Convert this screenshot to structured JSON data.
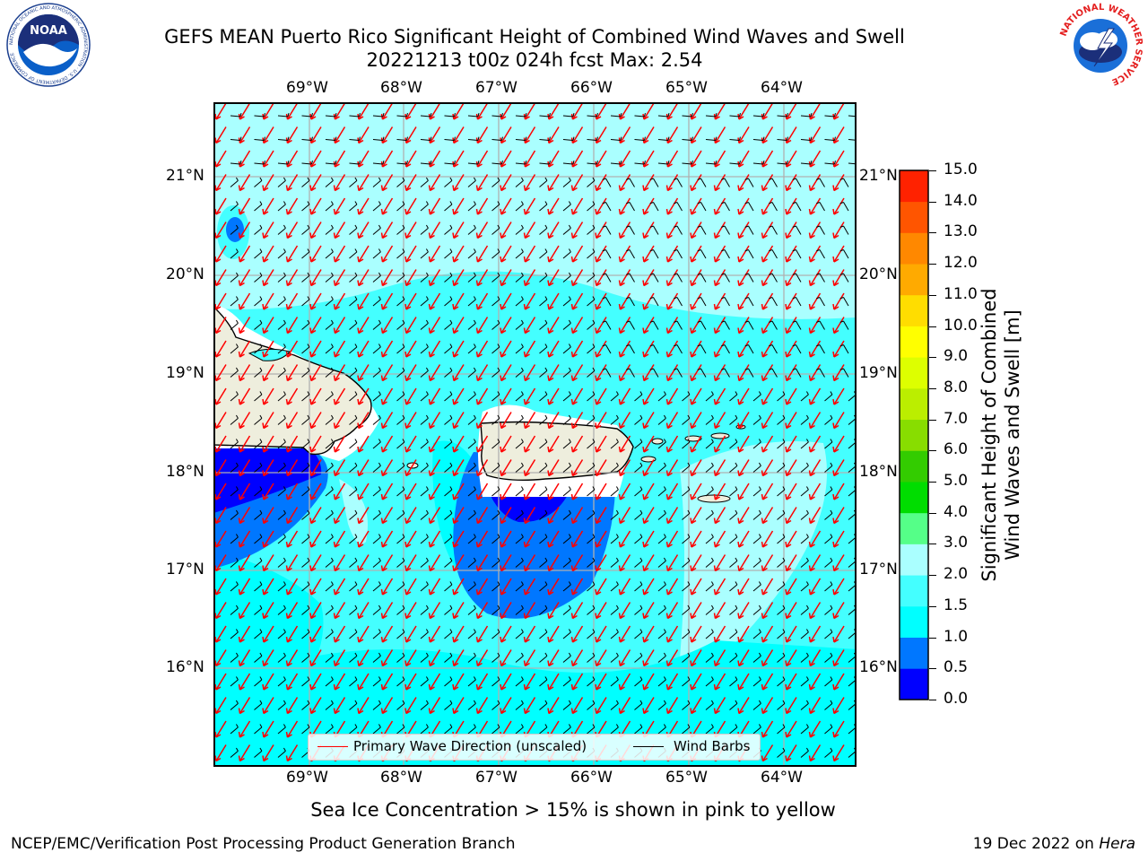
{
  "title": {
    "line1": "GEFS MEAN Puerto Rico Significant Height of Combined Wind Waves and Swell",
    "line2": "20221213 t00z 024h fcst   Max: 2.54"
  },
  "logos": {
    "left": "NOAA",
    "left_ring": "NATIONAL OCEANIC AND ATMOSPHERIC ADMINISTRATION · U.S. DEPARTMENT OF COMMERCE",
    "right_ring": "NATIONAL WEATHER SERVICE"
  },
  "map": {
    "lon_labels": [
      "69°W",
      "68°W",
      "67°W",
      "66°W",
      "65°W",
      "64°W"
    ],
    "lat_labels": [
      "21°N",
      "20°N",
      "19°N",
      "18°N",
      "17°N",
      "16°N"
    ],
    "ocean_color": "#00ffff",
    "land_color": "#eeeedd",
    "wave_arrow_color": "#ff0000",
    "barb_color": "#000000"
  },
  "legend": {
    "wave_direction": "Primary Wave Direction (unscaled)",
    "wind_barbs": "Wind Barbs"
  },
  "colorbar": {
    "label_line1": "Significant Height of Combined",
    "label_line2": "Wind Waves and Swell [m]",
    "ticks": [
      "15.0",
      "14.0",
      "13.0",
      "12.0",
      "11.0",
      "10.0",
      "9.0",
      "8.0",
      "7.0",
      "6.0",
      "5.0",
      "4.0",
      "3.0",
      "2.0",
      "1.5",
      "1.0",
      "0.5",
      "0.0"
    ],
    "colors": [
      "#0000ff",
      "#0077ff",
      "#00ffff",
      "#44ffff",
      "#aaffff",
      "#55ff88",
      "#00dd00",
      "#33cc00",
      "#88dd00",
      "#bbee00",
      "#ddff00",
      "#ffff00",
      "#ffdd00",
      "#ffaa00",
      "#ff8800",
      "#ff5500",
      "#ff2200"
    ]
  },
  "caption": "Sea Ice Concentration > 15% is shown in pink to yellow",
  "footer": {
    "left": "NCEP/EMC/Verification Post Processing Product Generation Branch",
    "right_prefix": "19 Dec 2022 on ",
    "right_host": "Hera"
  }
}
